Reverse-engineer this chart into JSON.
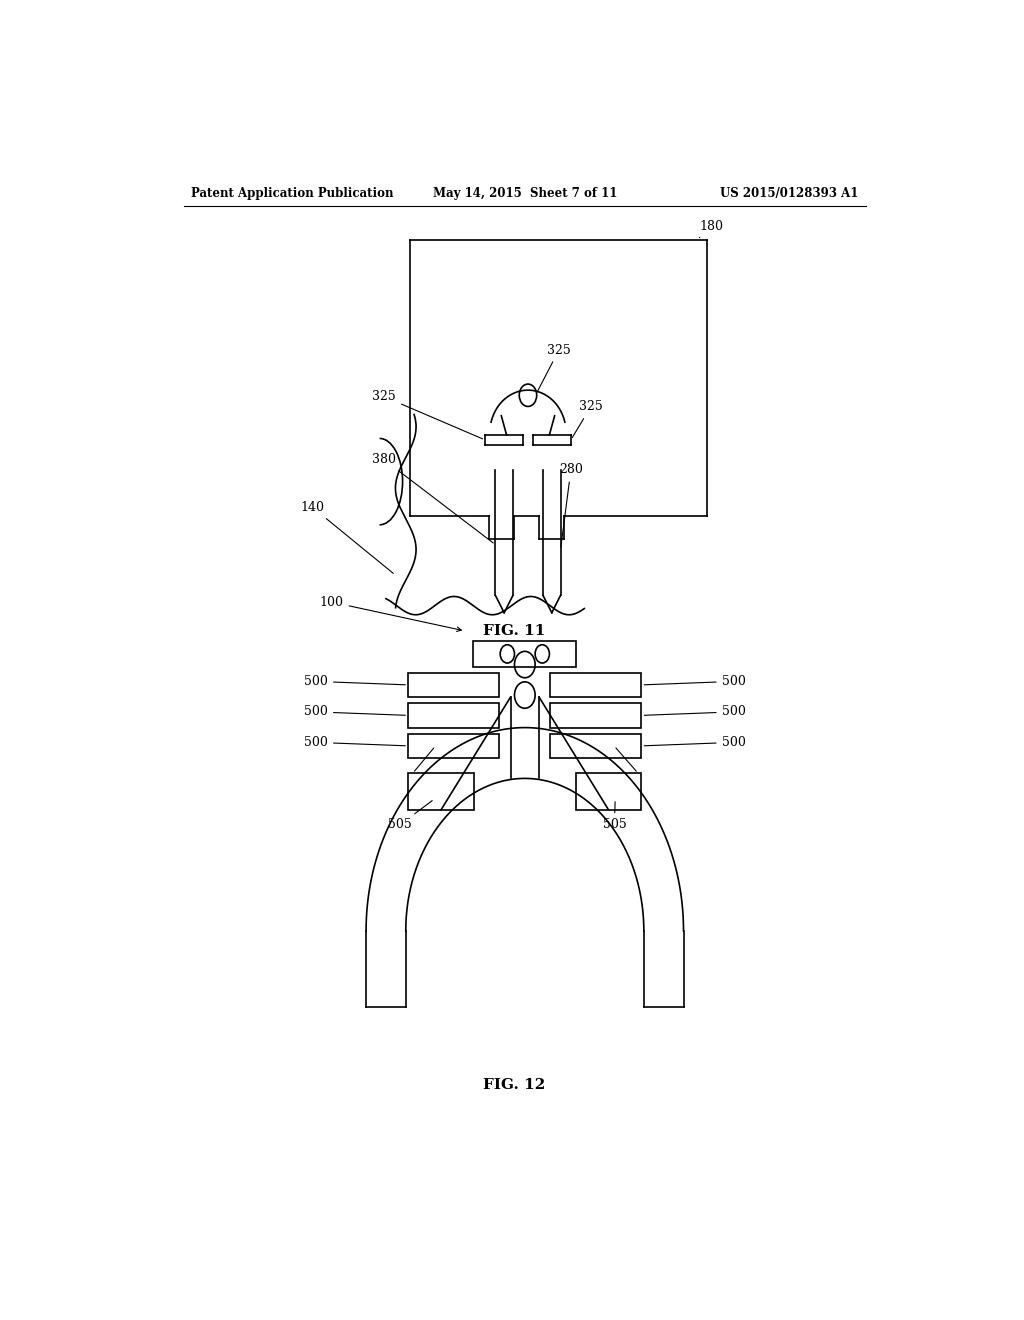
{
  "bg_color": "#ffffff",
  "line_color": "#000000",
  "header_left": "Patent Application Publication",
  "header_center": "May 14, 2015  Sheet 7 of 11",
  "header_right": "US 2015/0128393 A1",
  "fig11_label": "FIG. 11",
  "fig12_label": "FIG. 12"
}
